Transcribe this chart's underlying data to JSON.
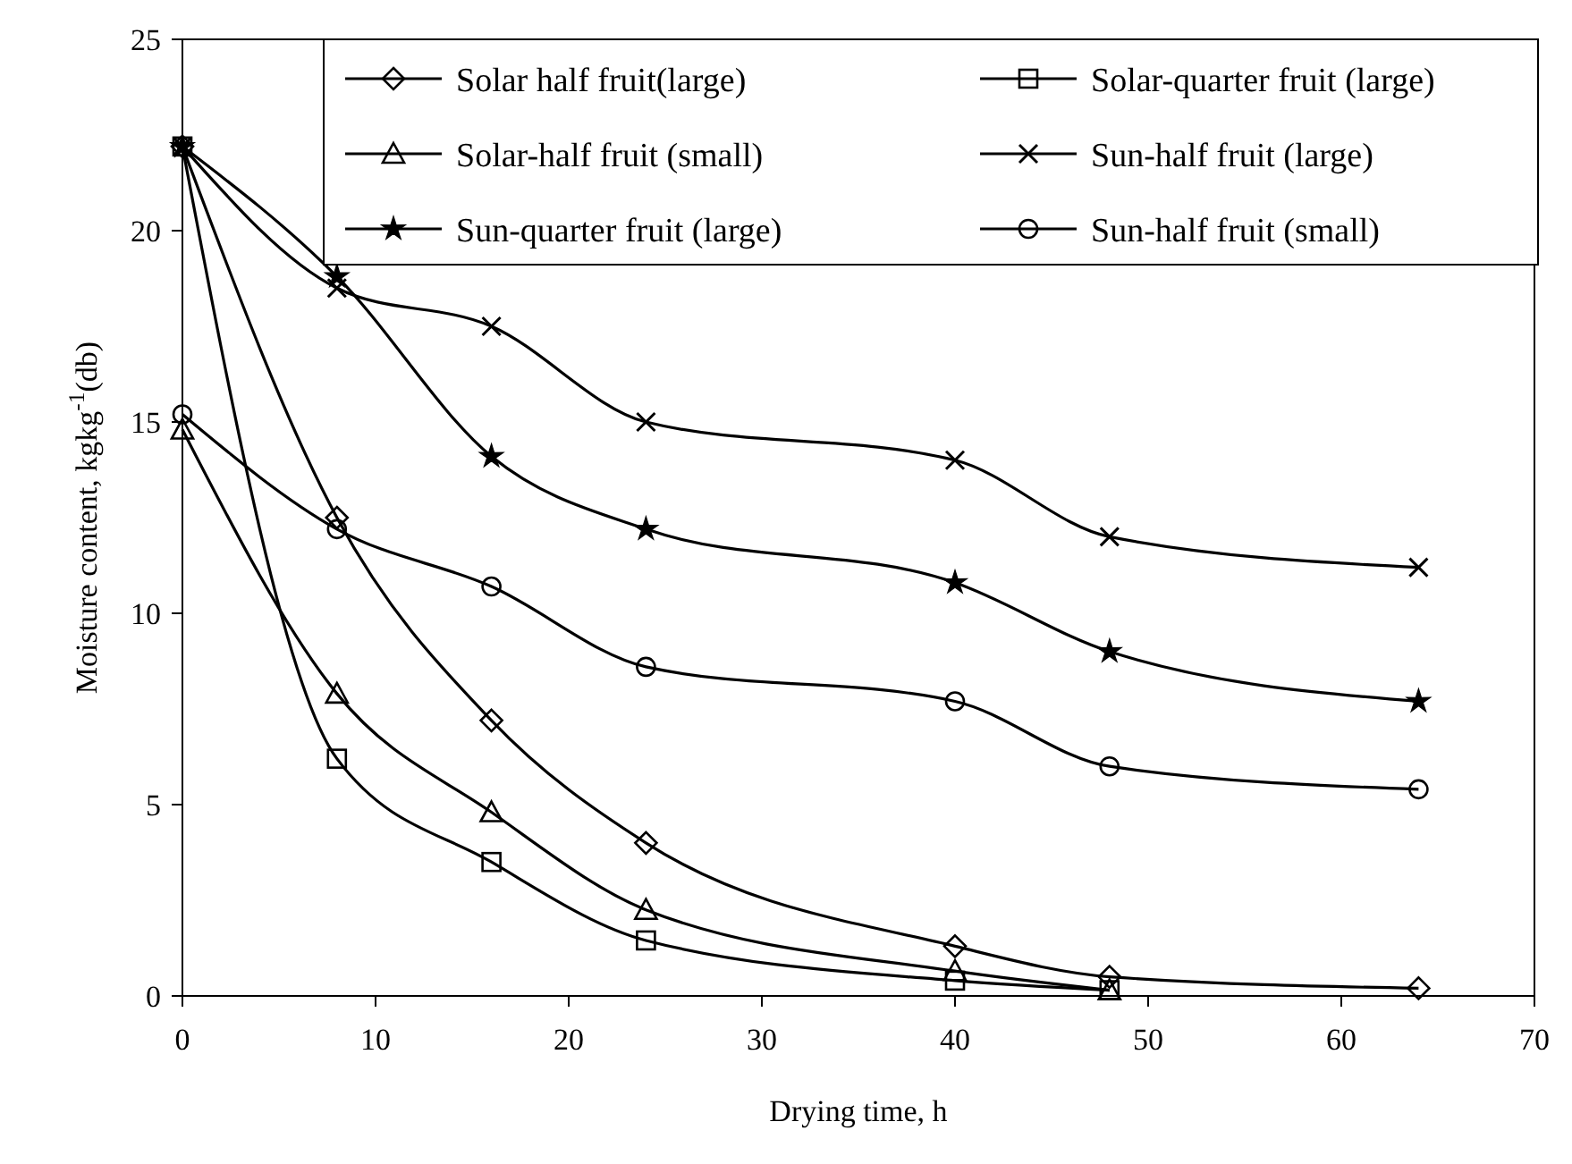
{
  "chart_data": {
    "type": "line",
    "xlabel": "Drying time, h",
    "ylabel": "Moisture content, kgkg$^{-1}$(db)",
    "x": [
      0,
      8,
      16,
      24,
      40,
      48,
      64
    ],
    "xlim": [
      0,
      70
    ],
    "xticks": [
      0,
      10,
      20,
      30,
      40,
      50,
      60,
      70
    ],
    "ylim": [
      0,
      25
    ],
    "yticks": [
      0,
      5,
      10,
      15,
      20,
      25
    ],
    "legend": "top right",
    "line_style": "solid",
    "series": [
      {
        "name": "Solar half fruit(large)",
        "color": "#000000",
        "marker": "diamond",
        "values": [
          22.2,
          12.5,
          7.2,
          4.0,
          1.3,
          0.5,
          0.2
        ]
      },
      {
        "name": "Solar-quarter fruit (large)",
        "color": "#000000",
        "marker": "square",
        "x": [
          0,
          8,
          16,
          24,
          40,
          48
        ],
        "values": [
          22.2,
          6.2,
          3.5,
          1.45,
          0.4,
          0.15
        ]
      },
      {
        "name": "Solar-half fruit (small)",
        "color": "#000000",
        "marker": "triangle",
        "x": [
          0,
          8,
          16,
          24,
          40,
          48
        ],
        "values": [
          14.8,
          7.9,
          4.8,
          2.25,
          0.65,
          0.15
        ]
      },
      {
        "name": "Sun-half fruit (large)",
        "color": "#000000",
        "marker": "cross",
        "values": [
          22.2,
          18.5,
          17.5,
          15.0,
          14.0,
          12.0,
          11.2
        ]
      },
      {
        "name": "Sun-quarter fruit (large)",
        "color": "#000000",
        "marker": "star",
        "values": [
          22.2,
          18.8,
          14.1,
          12.2,
          10.8,
          9.0,
          7.7
        ]
      },
      {
        "name": "Sun-half fruit (small)",
        "color": "#000000",
        "marker": "circle",
        "values": [
          15.2,
          12.2,
          10.7,
          8.6,
          7.7,
          6.0,
          5.4
        ]
      }
    ]
  }
}
